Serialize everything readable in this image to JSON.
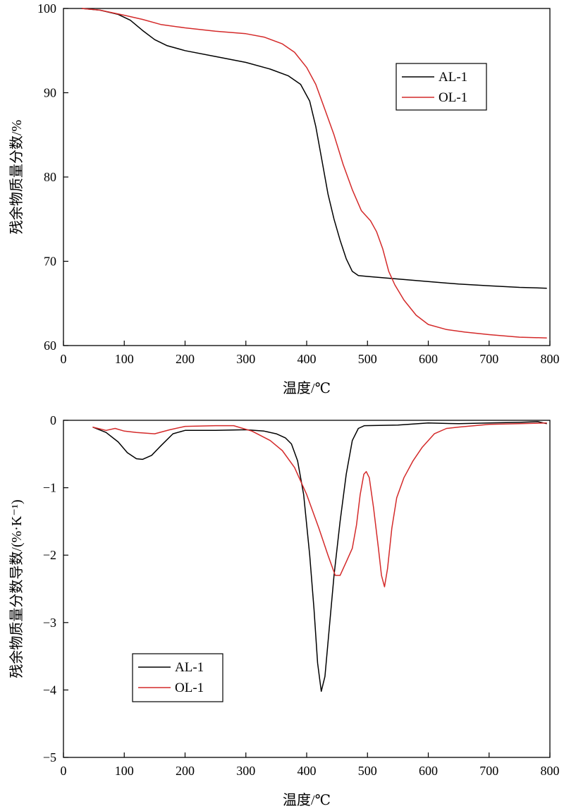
{
  "chart_data": [
    {
      "type": "line",
      "xlabel": "温度/℃",
      "ylabel": "残余物质量分数/%",
      "xlim": [
        0,
        800
      ],
      "ylim": [
        60,
        100
      ],
      "x_ticks": [
        "0",
        "100",
        "200",
        "300",
        "400",
        "500",
        "600",
        "700",
        "800"
      ],
      "y_ticks": [
        "60",
        "70",
        "80",
        "90",
        "100"
      ],
      "y_tick_values": [
        60,
        70,
        80,
        90,
        100
      ],
      "grid": false,
      "legend_position": "top-right",
      "series": [
        {
          "name": "AL-1",
          "color": "#000000",
          "points": [
            [
              30,
              100
            ],
            [
              60,
              99.8
            ],
            [
              90,
              99.3
            ],
            [
              110,
              98.6
            ],
            [
              130,
              97.4
            ],
            [
              150,
              96.3
            ],
            [
              170,
              95.6
            ],
            [
              200,
              95.0
            ],
            [
              250,
              94.3
            ],
            [
              300,
              93.6
            ],
            [
              340,
              92.8
            ],
            [
              370,
              92.0
            ],
            [
              390,
              91.0
            ],
            [
              405,
              89.0
            ],
            [
              415,
              86.0
            ],
            [
              425,
              82.0
            ],
            [
              435,
              78.0
            ],
            [
              445,
              75.0
            ],
            [
              455,
              72.5
            ],
            [
              465,
              70.3
            ],
            [
              475,
              68.8
            ],
            [
              485,
              68.3
            ],
            [
              500,
              68.2
            ],
            [
              550,
              67.9
            ],
            [
              600,
              67.6
            ],
            [
              650,
              67.3
            ],
            [
              700,
              67.1
            ],
            [
              750,
              66.9
            ],
            [
              795,
              66.8
            ]
          ]
        },
        {
          "name": "OL-1",
          "color": "#d42a2a",
          "points": [
            [
              30,
              100
            ],
            [
              60,
              99.8
            ],
            [
              100,
              99.2
            ],
            [
              130,
              98.7
            ],
            [
              160,
              98.1
            ],
            [
              200,
              97.7
            ],
            [
              250,
              97.3
            ],
            [
              300,
              97.0
            ],
            [
              330,
              96.6
            ],
            [
              360,
              95.8
            ],
            [
              380,
              94.8
            ],
            [
              400,
              93.0
            ],
            [
              415,
              91.0
            ],
            [
              430,
              88.0
            ],
            [
              445,
              85.0
            ],
            [
              460,
              81.5
            ],
            [
              475,
              78.5
            ],
            [
              490,
              76.0
            ],
            [
              505,
              74.8
            ],
            [
              515,
              73.5
            ],
            [
              525,
              71.5
            ],
            [
              535,
              68.8
            ],
            [
              545,
              67.2
            ],
            [
              560,
              65.4
            ],
            [
              580,
              63.6
            ],
            [
              600,
              62.5
            ],
            [
              630,
              61.9
            ],
            [
              660,
              61.6
            ],
            [
              700,
              61.3
            ],
            [
              750,
              61.0
            ],
            [
              795,
              60.9
            ]
          ]
        }
      ]
    },
    {
      "type": "line",
      "xlabel": "温度/℃",
      "ylabel": "残余物质量分数导数/(%·K⁻¹)",
      "xlim": [
        0,
        800
      ],
      "ylim": [
        -5,
        0
      ],
      "x_ticks": [
        "0",
        "100",
        "200",
        "300",
        "400",
        "500",
        "600",
        "700",
        "800"
      ],
      "y_ticks": [
        "−5",
        "−4",
        "−3",
        "−2",
        "−1",
        "0"
      ],
      "y_tick_values": [
        -5,
        -4,
        -3,
        -2,
        -1,
        0
      ],
      "grid": false,
      "legend_position": "bottom-left",
      "series": [
        {
          "name": "AL-1",
          "color": "#000000",
          "points": [
            [
              48,
              -0.1
            ],
            [
              70,
              -0.18
            ],
            [
              90,
              -0.32
            ],
            [
              105,
              -0.48
            ],
            [
              120,
              -0.57
            ],
            [
              130,
              -0.58
            ],
            [
              145,
              -0.52
            ],
            [
              160,
              -0.38
            ],
            [
              180,
              -0.2
            ],
            [
              200,
              -0.15
            ],
            [
              250,
              -0.15
            ],
            [
              300,
              -0.14
            ],
            [
              330,
              -0.16
            ],
            [
              350,
              -0.2
            ],
            [
              365,
              -0.26
            ],
            [
              375,
              -0.35
            ],
            [
              385,
              -0.6
            ],
            [
              395,
              -1.1
            ],
            [
              405,
              -2.0
            ],
            [
              412,
              -2.8
            ],
            [
              418,
              -3.6
            ],
            [
              424,
              -4.02
            ],
            [
              430,
              -3.8
            ],
            [
              437,
              -3.1
            ],
            [
              445,
              -2.3
            ],
            [
              455,
              -1.5
            ],
            [
              465,
              -0.8
            ],
            [
              475,
              -0.3
            ],
            [
              485,
              -0.12
            ],
            [
              495,
              -0.08
            ],
            [
              550,
              -0.07
            ],
            [
              600,
              -0.04
            ],
            [
              650,
              -0.05
            ],
            [
              700,
              -0.04
            ],
            [
              750,
              -0.03
            ],
            [
              780,
              -0.02
            ],
            [
              795,
              -0.05
            ]
          ]
        },
        {
          "name": "OL-1",
          "color": "#d42a2a",
          "points": [
            [
              48,
              -0.1
            ],
            [
              70,
              -0.15
            ],
            [
              85,
              -0.12
            ],
            [
              100,
              -0.16
            ],
            [
              120,
              -0.18
            ],
            [
              150,
              -0.2
            ],
            [
              175,
              -0.14
            ],
            [
              200,
              -0.09
            ],
            [
              250,
              -0.08
            ],
            [
              280,
              -0.08
            ],
            [
              310,
              -0.16
            ],
            [
              340,
              -0.3
            ],
            [
              360,
              -0.45
            ],
            [
              380,
              -0.7
            ],
            [
              400,
              -1.1
            ],
            [
              420,
              -1.6
            ],
            [
              435,
              -2.0
            ],
            [
              447,
              -2.3
            ],
            [
              455,
              -2.3
            ],
            [
              465,
              -2.1
            ],
            [
              475,
              -1.9
            ],
            [
              482,
              -1.55
            ],
            [
              488,
              -1.1
            ],
            [
              494,
              -0.8
            ],
            [
              498,
              -0.76
            ],
            [
              503,
              -0.85
            ],
            [
              510,
              -1.3
            ],
            [
              518,
              -1.9
            ],
            [
              523,
              -2.3
            ],
            [
              528,
              -2.47
            ],
            [
              533,
              -2.2
            ],
            [
              540,
              -1.6
            ],
            [
              548,
              -1.15
            ],
            [
              560,
              -0.85
            ],
            [
              575,
              -0.6
            ],
            [
              590,
              -0.4
            ],
            [
              610,
              -0.2
            ],
            [
              630,
              -0.12
            ],
            [
              650,
              -0.1
            ],
            [
              700,
              -0.06
            ],
            [
              750,
              -0.05
            ],
            [
              795,
              -0.04
            ]
          ]
        }
      ]
    }
  ]
}
